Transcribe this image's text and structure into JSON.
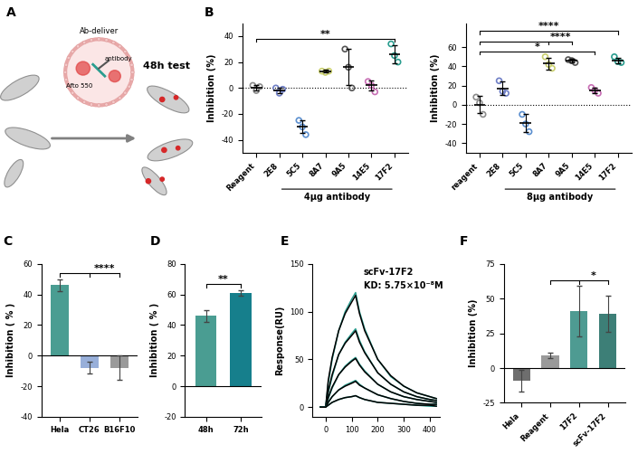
{
  "diagram": {
    "panel": "A",
    "carrier": "Ab-deliver",
    "dye": "Afto 550",
    "cargo": "antibody",
    "readout": "48h test"
  },
  "chart_data": [
    {
      "panel": "B",
      "type": "strip",
      "ylabel": "Inhibition (%)",
      "categories": [
        "Reagent",
        "2E8",
        "5C5",
        "8A7",
        "9A5",
        "14E5",
        "17F2"
      ],
      "colors": [
        "#8c8c8c",
        "#6f7fc6",
        "#5b8fcf",
        "#c9cf6e",
        "#555555",
        "#c86fb5",
        "#2a9d8f"
      ],
      "points": [
        [
          2,
          -2,
          1
        ],
        [
          0,
          -4,
          -1
        ],
        [
          -25,
          -30,
          -36
        ],
        [
          13,
          12,
          13
        ],
        [
          30,
          16,
          0
        ],
        [
          5,
          2,
          -3
        ],
        [
          34,
          25,
          20
        ]
      ],
      "means": [
        0,
        -2,
        -30,
        13,
        16,
        2,
        26
      ],
      "errors": [
        2,
        2,
        5,
        1,
        14,
        4,
        7
      ],
      "ylim": [
        -50,
        50
      ],
      "yticks": [
        -40,
        -20,
        0,
        20,
        40
      ],
      "group": {
        "label": "4μg antibody",
        "categories": [
          "2E8",
          "5C5",
          "8A7",
          "9A5",
          "14E5",
          "17F2"
        ]
      },
      "comparisons": [
        {
          "text": "**",
          "from": "Reagent",
          "to": [
            "17F2"
          ]
        }
      ]
    },
    {
      "type": "strip",
      "ylabel": "Inhibition (%)",
      "categories": [
        "reagent",
        "2E8",
        "5C5",
        "8A7",
        "9A5",
        "14E5",
        "17F2"
      ],
      "colors": [
        "#8c8c8c",
        "#6f7fc6",
        "#5b8fcf",
        "#c9cf6e",
        "#555555",
        "#c86fb5",
        "#2a9d8f"
      ],
      "points": [
        [
          8,
          2,
          -10
        ],
        [
          25,
          14,
          12
        ],
        [
          -10,
          -20,
          -28
        ],
        [
          50,
          42,
          38
        ],
        [
          47,
          46,
          44
        ],
        [
          18,
          15,
          12
        ],
        [
          50,
          45,
          44
        ]
      ],
      "means": [
        0,
        17,
        -19,
        43,
        46,
        15,
        46
      ],
      "errors": [
        9,
        7,
        9,
        6,
        2,
        3,
        3
      ],
      "ylim": [
        -50,
        85
      ],
      "yticks": [
        -40,
        -20,
        0,
        20,
        40,
        60
      ],
      "group": {
        "label": "8μg antibody",
        "categories": [
          "2E8",
          "5C5",
          "8A7",
          "9A5",
          "14E5",
          "17F2"
        ]
      },
      "comparisons": [
        {
          "text": "*",
          "from": "reagent",
          "to": [
            "14E5"
          ]
        },
        {
          "text": "****",
          "from": "reagent",
          "to": [
            "8A7",
            "9A5"
          ]
        },
        {
          "text": "****",
          "from": "reagent",
          "to": [
            "17F2"
          ]
        }
      ]
    },
    {
      "panel": "C",
      "type": "bar",
      "ylabel": "Inhibition ( % )",
      "categories": [
        "Hela",
        "CT26",
        "B16F10"
      ],
      "values": [
        46,
        -8,
        -8
      ],
      "errors": [
        4,
        4,
        8
      ],
      "colors": [
        "#4a9d92",
        "#98afd9",
        "#9a9a9a"
      ],
      "ylim": [
        -40,
        60
      ],
      "yticks": [
        -40,
        -20,
        0,
        20,
        40,
        60
      ],
      "comparisons": [
        {
          "text": "****",
          "from": "Hela",
          "to": [
            "CT26",
            "B16F10"
          ]
        }
      ]
    },
    {
      "panel": "D",
      "type": "bar",
      "ylabel": "Inhibition ( % )",
      "categories": [
        "48h",
        "72h"
      ],
      "values": [
        46,
        61
      ],
      "errors": [
        4,
        2
      ],
      "colors": [
        "#4a9d92",
        "#167f8c"
      ],
      "ylim": [
        -20,
        80
      ],
      "yticks": [
        -20,
        0,
        20,
        40,
        60,
        80
      ],
      "comparisons": [
        {
          "text": "**",
          "from": "48h",
          "to": [
            "72h"
          ]
        }
      ]
    },
    {
      "panel": "E",
      "type": "line",
      "ylabel": "Response(RU)",
      "annotations": [
        "scFv-17F2",
        "KD: 5.75×10⁻⁸M"
      ],
      "x": [
        -20,
        0,
        10,
        25,
        50,
        75,
        100,
        115,
        130,
        150,
        200,
        250,
        300,
        350,
        400,
        425
      ],
      "series": [
        {
          "color": "#2a9d8f",
          "values": [
            0,
            0,
            25,
            50,
            80,
            100,
            113,
            120,
            100,
            82,
            50,
            32,
            22,
            15,
            11,
            9
          ]
        },
        {
          "color": "#000000",
          "values": [
            0,
            0,
            28,
            52,
            80,
            98,
            110,
            117,
            98,
            80,
            50,
            33,
            22,
            15,
            11,
            9
          ]
        },
        {
          "color": "#2a9d8f",
          "values": [
            0,
            0,
            15,
            32,
            55,
            68,
            77,
            82,
            70,
            58,
            36,
            24,
            16,
            11,
            8,
            7
          ]
        },
        {
          "color": "#000000",
          "values": [
            0,
            0,
            17,
            34,
            55,
            67,
            75,
            80,
            68,
            57,
            36,
            24,
            16,
            11,
            8,
            7
          ]
        },
        {
          "color": "#2a9d8f",
          "values": [
            0,
            0,
            9,
            20,
            34,
            43,
            49,
            52,
            45,
            38,
            24,
            16,
            11,
            8,
            6,
            5
          ]
        },
        {
          "color": "#000000",
          "values": [
            0,
            0,
            10,
            21,
            34,
            42,
            48,
            51,
            44,
            37,
            24,
            16,
            11,
            8,
            6,
            5
          ]
        },
        {
          "color": "#2a9d8f",
          "values": [
            0,
            0,
            5,
            11,
            18,
            23,
            26,
            28,
            24,
            20,
            13,
            9,
            6,
            4,
            3,
            3
          ]
        },
        {
          "color": "#000000",
          "values": [
            0,
            0,
            5,
            11,
            18,
            22,
            25,
            27,
            23,
            20,
            13,
            9,
            6,
            4,
            3,
            3
          ]
        },
        {
          "color": "#2a9d8f",
          "values": [
            0,
            0,
            2,
            5,
            8,
            10,
            11,
            12,
            10,
            8,
            5,
            4,
            3,
            2,
            1,
            1
          ]
        },
        {
          "color": "#000000",
          "values": [
            0,
            0,
            2,
            5,
            8,
            10,
            11,
            12,
            10,
            8,
            5,
            4,
            3,
            2,
            2,
            1
          ]
        }
      ],
      "xlim": [
        -50,
        440
      ],
      "xticks": [
        0,
        100,
        200,
        300,
        400
      ],
      "ylim": [
        -10,
        150
      ],
      "yticks": [
        0,
        50,
        100,
        150
      ]
    },
    {
      "panel": "F",
      "type": "bar",
      "ylabel": "Inhibition (%)",
      "categories": [
        "Hela",
        "Reagent",
        "17F2",
        "scFv-17F2"
      ],
      "values": [
        -9,
        9,
        41,
        39
      ],
      "errors": [
        8,
        2,
        18,
        13
      ],
      "colors": [
        "#6e6e6e",
        "#9a9a9a",
        "#4e9b92",
        "#3d7f77"
      ],
      "ylim": [
        -25,
        75
      ],
      "yticks": [
        -25,
        0,
        25,
        50,
        75
      ],
      "comparisons": [
        {
          "text": "*",
          "from": "Reagent",
          "to": [
            "17F2",
            "scFv-17F2"
          ]
        }
      ]
    }
  ]
}
